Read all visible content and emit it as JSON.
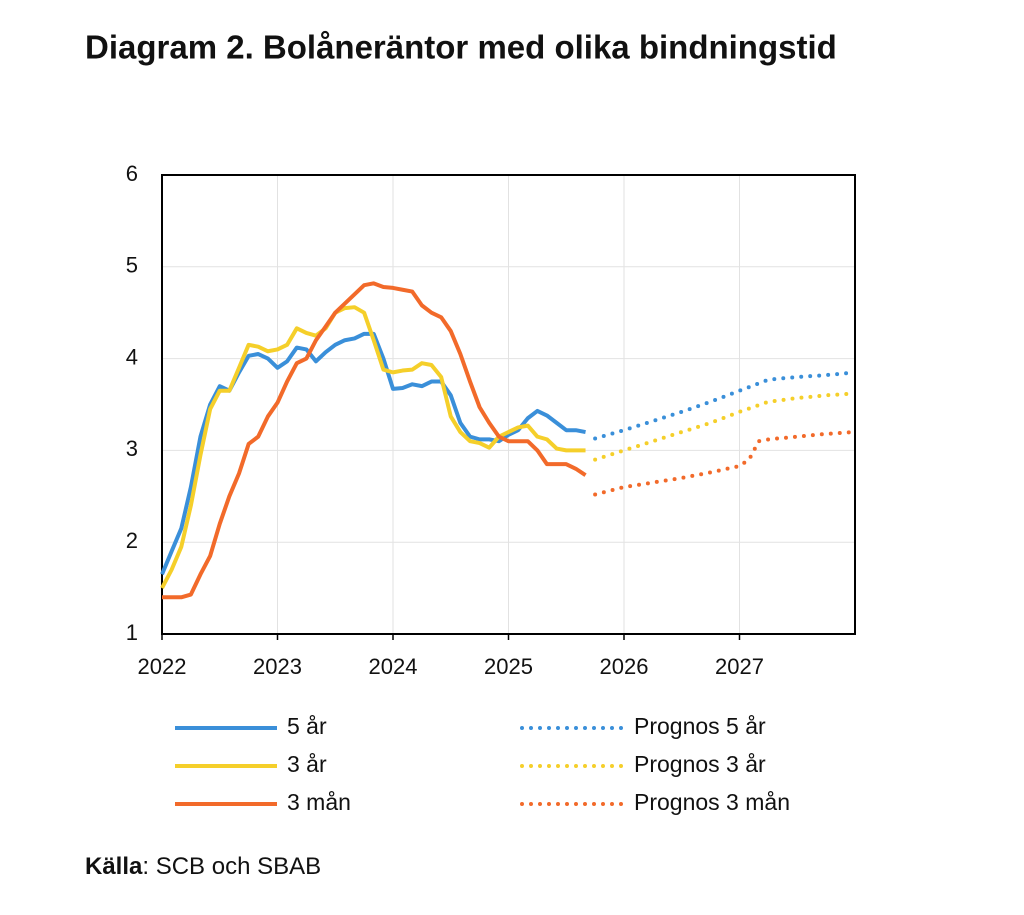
{
  "chart_data": {
    "type": "line",
    "title": "Diagram 2. Bolåneräntor med olika bindningstid",
    "source_label": "Källa",
    "source_text": ": SCB och SBAB",
    "xlim": [
      2022,
      2028
    ],
    "xticks": [
      2022,
      2023,
      2024,
      2025,
      2026,
      2027
    ],
    "ylim": [
      1,
      6
    ],
    "yticks": [
      1,
      2,
      3,
      4,
      5,
      6
    ],
    "grid": true,
    "series": [
      {
        "name": "5 år",
        "color": "#3a8fd9",
        "dashed": false,
        "x": [
          2022,
          2022.083,
          2022.167,
          2022.25,
          2022.333,
          2022.417,
          2022.5,
          2022.583,
          2022.667,
          2022.75,
          2022.833,
          2022.917,
          2023,
          2023.083,
          2023.167,
          2023.25,
          2023.333,
          2023.417,
          2023.5,
          2023.583,
          2023.667,
          2023.75,
          2023.833,
          2023.917,
          2024,
          2024.083,
          2024.167,
          2024.25,
          2024.333,
          2024.417,
          2024.5,
          2024.583,
          2024.667,
          2024.75,
          2024.833,
          2024.917,
          2025,
          2025.083,
          2025.167,
          2025.25,
          2025.333,
          2025.417,
          2025.5,
          2025.583,
          2025.667
        ],
        "values": [
          1.65,
          1.9,
          2.15,
          2.6,
          3.15,
          3.5,
          3.7,
          3.65,
          3.85,
          4.03,
          4.05,
          4.0,
          3.9,
          3.97,
          4.12,
          4.1,
          3.97,
          4.07,
          4.15,
          4.2,
          4.22,
          4.27,
          4.27,
          4.0,
          3.67,
          3.68,
          3.72,
          3.7,
          3.75,
          3.75,
          3.6,
          3.3,
          3.15,
          3.12,
          3.12,
          3.1,
          3.17,
          3.22,
          3.35,
          3.43,
          3.38,
          3.3,
          3.22,
          3.22,
          3.2
        ]
      },
      {
        "name": "3 år",
        "color": "#f5cf2a",
        "dashed": false,
        "x": [
          2022,
          2022.083,
          2022.167,
          2022.25,
          2022.333,
          2022.417,
          2022.5,
          2022.583,
          2022.667,
          2022.75,
          2022.833,
          2022.917,
          2023,
          2023.083,
          2023.167,
          2023.25,
          2023.333,
          2023.417,
          2023.5,
          2023.583,
          2023.667,
          2023.75,
          2023.833,
          2023.917,
          2024,
          2024.083,
          2024.167,
          2024.25,
          2024.333,
          2024.417,
          2024.5,
          2024.583,
          2024.667,
          2024.75,
          2024.833,
          2024.917,
          2025,
          2025.083,
          2025.167,
          2025.25,
          2025.333,
          2025.417,
          2025.5,
          2025.583,
          2025.667
        ],
        "values": [
          1.5,
          1.7,
          1.95,
          2.4,
          2.95,
          3.45,
          3.65,
          3.65,
          3.9,
          4.15,
          4.13,
          4.08,
          4.1,
          4.15,
          4.33,
          4.28,
          4.25,
          4.33,
          4.5,
          4.55,
          4.56,
          4.5,
          4.2,
          3.88,
          3.85,
          3.87,
          3.88,
          3.95,
          3.93,
          3.8,
          3.37,
          3.2,
          3.1,
          3.08,
          3.03,
          3.15,
          3.2,
          3.25,
          3.27,
          3.15,
          3.12,
          3.02,
          3.0,
          3.0,
          3.0
        ]
      },
      {
        "name": "3 mån",
        "color": "#f26a2a",
        "dashed": false,
        "x": [
          2022,
          2022.083,
          2022.167,
          2022.25,
          2022.333,
          2022.417,
          2022.5,
          2022.583,
          2022.667,
          2022.75,
          2022.833,
          2022.917,
          2023,
          2023.083,
          2023.167,
          2023.25,
          2023.333,
          2023.417,
          2023.5,
          2023.583,
          2023.667,
          2023.75,
          2023.833,
          2023.917,
          2024,
          2024.083,
          2024.167,
          2024.25,
          2024.333,
          2024.417,
          2024.5,
          2024.583,
          2024.667,
          2024.75,
          2024.833,
          2024.917,
          2025,
          2025.083,
          2025.167,
          2025.25,
          2025.333,
          2025.417,
          2025.5,
          2025.583,
          2025.667
        ],
        "values": [
          1.4,
          1.4,
          1.4,
          1.43,
          1.65,
          1.85,
          2.2,
          2.5,
          2.75,
          3.07,
          3.15,
          3.37,
          3.52,
          3.75,
          3.95,
          4.0,
          4.2,
          4.35,
          4.5,
          4.6,
          4.7,
          4.8,
          4.82,
          4.78,
          4.77,
          4.75,
          4.73,
          4.58,
          4.5,
          4.45,
          4.3,
          4.05,
          3.75,
          3.47,
          3.3,
          3.15,
          3.1,
          3.1,
          3.1,
          3.0,
          2.85,
          2.85,
          2.85,
          2.8,
          2.73
        ]
      },
      {
        "name": "Prognos 5 år",
        "color": "#3a8fd9",
        "dashed": true,
        "x": [
          2025.75,
          2026,
          2026.25,
          2026.5,
          2026.75,
          2027,
          2027.25,
          2027.5,
          2027.75,
          2028
        ],
        "values": [
          3.13,
          3.22,
          3.32,
          3.42,
          3.53,
          3.65,
          3.77,
          3.8,
          3.82,
          3.85
        ]
      },
      {
        "name": "Prognos 3 år",
        "color": "#f5cf2a",
        "dashed": true,
        "x": [
          2025.75,
          2026,
          2026.25,
          2026.5,
          2026.75,
          2027,
          2027.25,
          2027.5,
          2027.75,
          2028
        ],
        "values": [
          2.9,
          3.0,
          3.1,
          3.2,
          3.3,
          3.42,
          3.53,
          3.57,
          3.6,
          3.62
        ]
      },
      {
        "name": "Prognos 3 mån",
        "color": "#f26a2a",
        "dashed": true,
        "x": [
          2025.75,
          2026,
          2026.25,
          2026.5,
          2026.75,
          2027,
          2027.083,
          2027.167,
          2027.25,
          2027.5,
          2027.75,
          2028
        ],
        "values": [
          2.52,
          2.6,
          2.65,
          2.7,
          2.76,
          2.83,
          2.9,
          3.1,
          3.12,
          3.15,
          3.18,
          3.2
        ]
      }
    ]
  }
}
